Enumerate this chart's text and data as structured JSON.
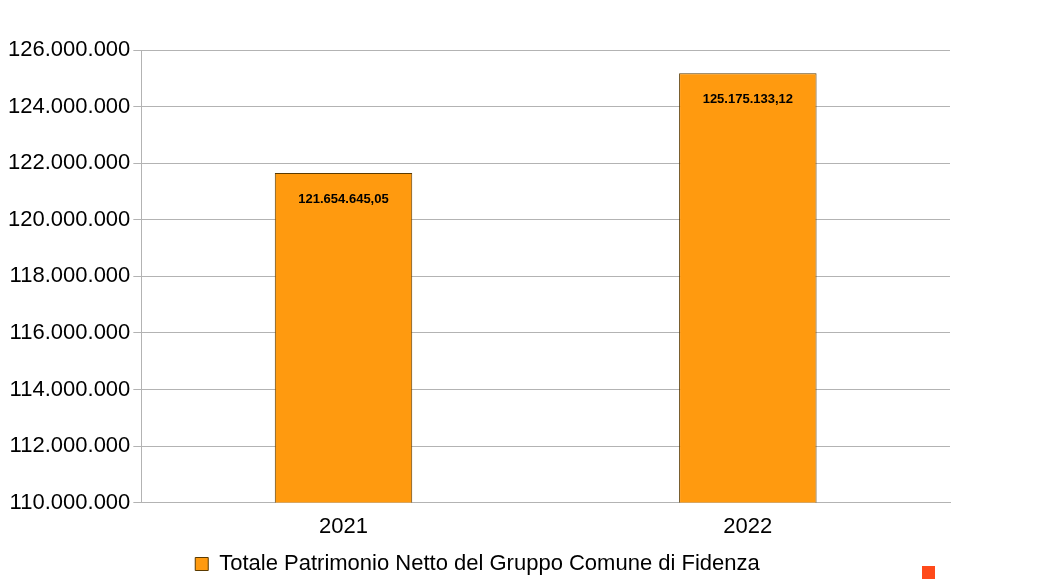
{
  "chart_data": {
    "type": "bar",
    "categories": [
      "2021",
      "2022"
    ],
    "series": [
      {
        "name": "Totale Patrimonio Netto del Gruppo Comune di Fidenza",
        "color": "#ff9a0f",
        "values": [
          121654645.05,
          125175133.12
        ],
        "value_labels": [
          "121.654.645,05",
          "125.175.133,12"
        ]
      }
    ],
    "ylim": [
      110000000,
      126000000
    ],
    "yticks": [
      {
        "value": 110000000,
        "label": "110.000.000"
      },
      {
        "value": 112000000,
        "label": "112.000.000"
      },
      {
        "value": 114000000,
        "label": "114.000.000"
      },
      {
        "value": 116000000,
        "label": "116.000.000"
      },
      {
        "value": 118000000,
        "label": "118.000.000"
      },
      {
        "value": 120000000,
        "label": "120.000.000"
      },
      {
        "value": 122000000,
        "label": "122.000.000"
      },
      {
        "value": 124000000,
        "label": "124.000.000"
      },
      {
        "value": 126000000,
        "label": "126.000.000"
      }
    ],
    "grid": "y",
    "legend": "bottom"
  }
}
